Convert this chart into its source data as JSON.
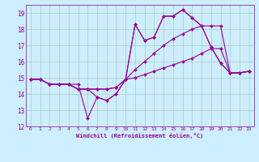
{
  "xlabel": "Windchill (Refroidissement éolien,°C)",
  "bg_color": "#cceeff",
  "grid_color": "#aaccbb",
  "line_color": "#990099",
  "xlim": [
    -0.5,
    23.5
  ],
  "ylim": [
    12,
    19.5
  ],
  "xticks": [
    0,
    1,
    2,
    3,
    4,
    5,
    6,
    7,
    8,
    9,
    10,
    11,
    12,
    13,
    14,
    15,
    16,
    17,
    18,
    19,
    20,
    21,
    22,
    23
  ],
  "yticks": [
    12,
    13,
    14,
    15,
    16,
    17,
    18,
    19
  ],
  "series": [
    [
      14.9,
      14.9,
      14.6,
      14.6,
      14.6,
      14.6,
      12.5,
      13.8,
      13.6,
      14.0,
      14.9,
      18.3,
      17.3,
      17.5,
      18.8,
      18.8,
      19.2,
      18.7,
      18.2,
      16.9,
      15.9,
      15.3,
      15.3,
      15.4
    ],
    [
      14.9,
      14.9,
      14.6,
      14.6,
      14.6,
      14.3,
      14.3,
      13.8,
      13.6,
      14.0,
      14.9,
      18.3,
      17.3,
      17.5,
      18.8,
      18.8,
      19.2,
      18.7,
      18.2,
      16.9,
      15.9,
      15.3,
      15.3,
      15.4
    ],
    [
      14.9,
      14.9,
      14.6,
      14.6,
      14.6,
      14.3,
      14.3,
      14.3,
      14.3,
      14.4,
      14.9,
      15.5,
      16.0,
      16.5,
      17.0,
      17.4,
      17.7,
      18.0,
      18.2,
      18.2,
      18.2,
      15.3,
      15.3,
      15.4
    ],
    [
      14.9,
      14.9,
      14.6,
      14.6,
      14.6,
      14.3,
      14.3,
      14.3,
      14.3,
      14.4,
      14.9,
      15.0,
      15.2,
      15.4,
      15.6,
      15.8,
      16.0,
      16.2,
      16.5,
      16.8,
      16.8,
      15.3,
      15.3,
      15.4
    ]
  ]
}
